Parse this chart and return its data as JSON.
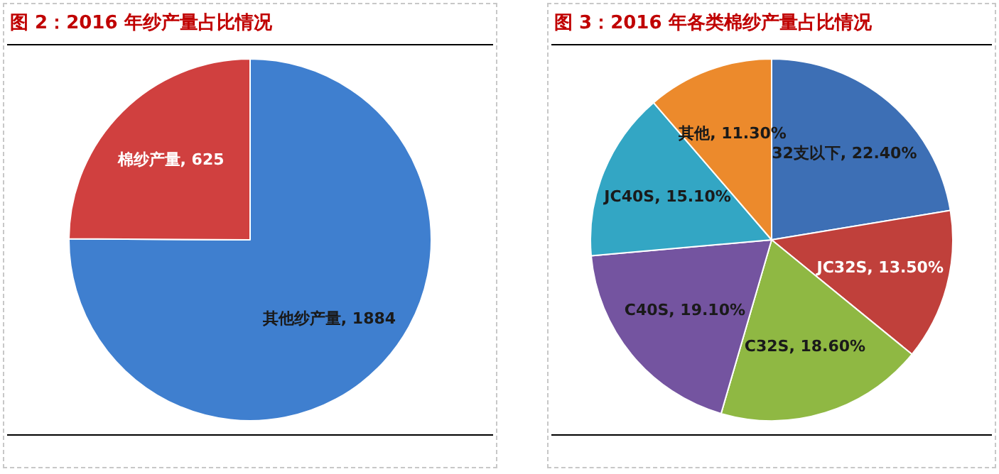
{
  "chart_data": [
    {
      "type": "pie",
      "title": "图 2：2016 年纱产量占比情况",
      "categories": [
        "其他纱产量",
        "棉纱产量"
      ],
      "values": [
        1884,
        625
      ],
      "value_labels": [
        "1884",
        "625"
      ],
      "colors": [
        "#3f7fcf",
        "#d0403f"
      ],
      "legend": false
    },
    {
      "type": "pie",
      "title": "图 3：2016 年各类棉纱产量占比情况",
      "categories": [
        "32支以下",
        "JC32S",
        "C32S",
        "C40S",
        "JC40S",
        "其他"
      ],
      "values": [
        22.4,
        13.5,
        18.6,
        19.1,
        15.1,
        11.3
      ],
      "value_labels": [
        "22.40%",
        "13.50%",
        "18.60%",
        "19.10%",
        "15.10%",
        "11.30%"
      ],
      "colors": [
        "#3d6fb5",
        "#c0403b",
        "#8fb843",
        "#7454a0",
        "#33a6c4",
        "#ec8a2c"
      ],
      "legend": false
    }
  ]
}
